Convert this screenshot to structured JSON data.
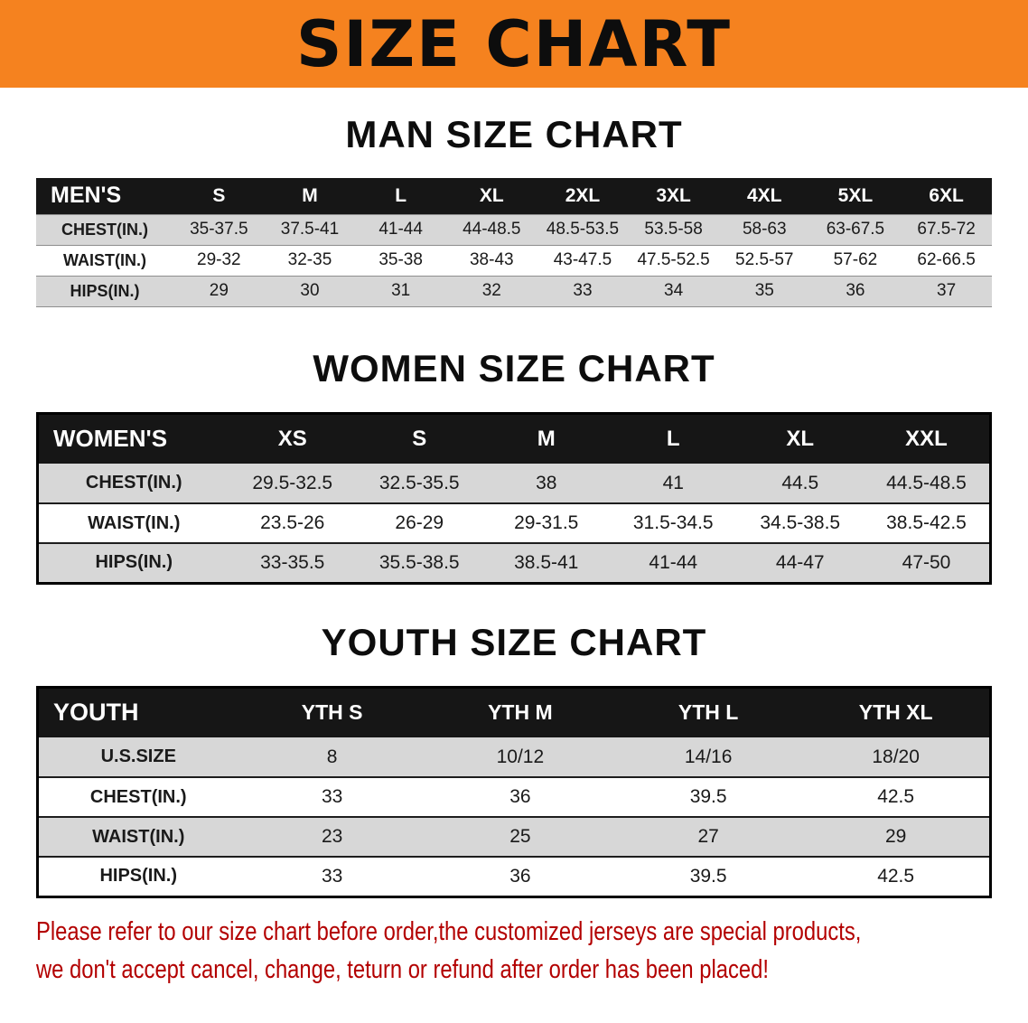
{
  "banner": {
    "title": "SIZE CHART",
    "bg_color": "#f5821f"
  },
  "sections": {
    "men": {
      "heading": "MAN SIZE CHART",
      "header": [
        "MEN'S",
        "S",
        "M",
        "L",
        "XL",
        "2XL",
        "3XL",
        "4XL",
        "5XL",
        "6XL"
      ],
      "rows": [
        [
          "CHEST(IN.)",
          "35-37.5",
          "37.5-41",
          "41-44",
          "44-48.5",
          "48.5-53.5",
          "53.5-58",
          "58-63",
          "63-67.5",
          "67.5-72"
        ],
        [
          "WAIST(IN.)",
          "29-32",
          "32-35",
          "35-38",
          "38-43",
          "43-47.5",
          "47.5-52.5",
          "52.5-57",
          "57-62",
          "62-66.5"
        ],
        [
          "HIPS(IN.)",
          "29",
          "30",
          "31",
          "32",
          "33",
          "34",
          "35",
          "36",
          "37"
        ]
      ]
    },
    "women": {
      "heading": "WOMEN SIZE CHART",
      "header": [
        "WOMEN'S",
        "XS",
        "S",
        "M",
        "L",
        "XL",
        "XXL"
      ],
      "rows": [
        [
          "CHEST(IN.)",
          "29.5-32.5",
          "32.5-35.5",
          "38",
          "41",
          "44.5",
          "44.5-48.5"
        ],
        [
          "WAIST(IN.)",
          "23.5-26",
          "26-29",
          "29-31.5",
          "31.5-34.5",
          "34.5-38.5",
          "38.5-42.5"
        ],
        [
          "HIPS(IN.)",
          "33-35.5",
          "35.5-38.5",
          "38.5-41",
          "41-44",
          "44-47",
          "47-50"
        ]
      ]
    },
    "youth": {
      "heading": "YOUTH SIZE CHART",
      "header": [
        "YOUTH",
        "YTH S",
        "YTH M",
        "YTH L",
        "YTH XL"
      ],
      "rows": [
        [
          "U.S.SIZE",
          "8",
          "10/12",
          "14/16",
          "18/20"
        ],
        [
          "CHEST(IN.)",
          "33",
          "36",
          "39.5",
          "42.5"
        ],
        [
          "WAIST(IN.)",
          "23",
          "25",
          "27",
          "29"
        ],
        [
          "HIPS(IN.)",
          "33",
          "36",
          "39.5",
          "42.5"
        ]
      ]
    }
  },
  "disclaimer": {
    "line1": "Please refer to our size chart before order,the customized jerseys are special products,",
    "line2": "we don't accept cancel, change, teturn or refund after order has been placed!",
    "color": "#b30000"
  }
}
